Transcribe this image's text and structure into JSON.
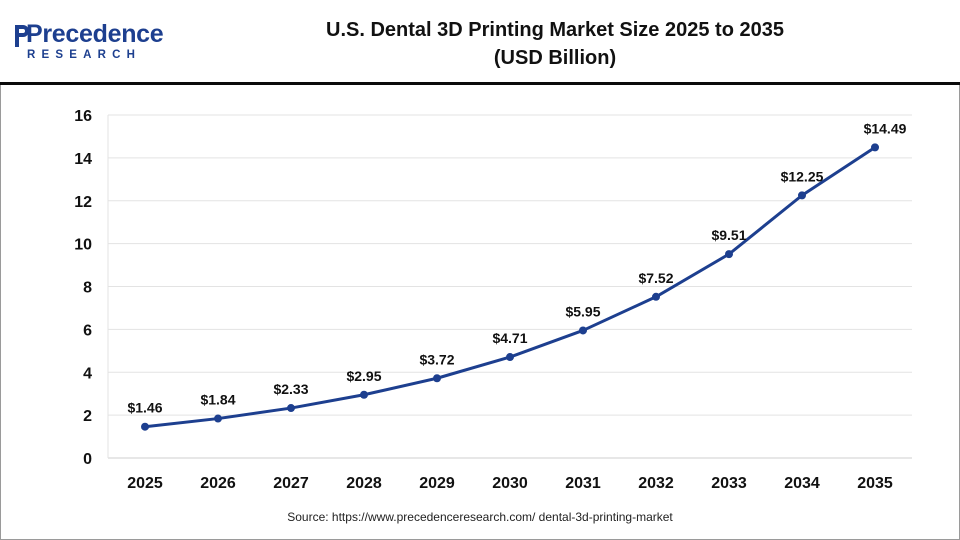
{
  "logo": {
    "name": "Precedence",
    "sub": "RESEARCH",
    "color": "#1d3f8f"
  },
  "header": {
    "title_line1": "U.S. Dental 3D Printing Market Size 2025 to 2035",
    "title_line2": "(USD Billion)"
  },
  "source": "Source: https://www.precedenceresearch.com/ dental-3d-printing-market",
  "chart_data": {
    "type": "line",
    "title": "U.S. Dental 3D Printing Market Size 2025 to 2035 (USD Billion)",
    "xlabel": "",
    "ylabel": "",
    "x": [
      "2025",
      "2026",
      "2027",
      "2028",
      "2029",
      "2030",
      "2031",
      "2032",
      "2033",
      "2034",
      "2035"
    ],
    "values": [
      1.46,
      1.84,
      2.33,
      2.95,
      3.72,
      4.71,
      5.95,
      7.52,
      9.51,
      12.25,
      14.49
    ],
    "data_labels": [
      "$1.46",
      "$1.84",
      "$2.33",
      "$2.95",
      "$3.72",
      "$4.71",
      "$5.95",
      "$7.52",
      "$9.51",
      "$12.25",
      "$14.49"
    ],
    "ylim": [
      0,
      16
    ],
    "yticks": [
      0,
      2,
      4,
      6,
      8,
      10,
      12,
      14,
      16
    ],
    "grid": true,
    "legend": "none",
    "line_color": "#1d3f8f"
  }
}
